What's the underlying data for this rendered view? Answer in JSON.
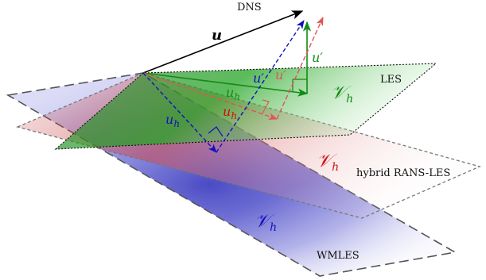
{
  "labels": {
    "dns": "DNS",
    "les": "LES",
    "hybrid": "hybrid RANS-LES",
    "wmles": "WMLES"
  },
  "symbols": {
    "u": "u",
    "u_prime": "u′",
    "u_h": "u",
    "h_sub": "h",
    "v_h": "𝒱",
    "v_h_sub": "h"
  },
  "colors": {
    "les": "#138a13",
    "hybrid": "#cc1010",
    "wmles": "#1111bb",
    "dns": "#000000"
  }
}
